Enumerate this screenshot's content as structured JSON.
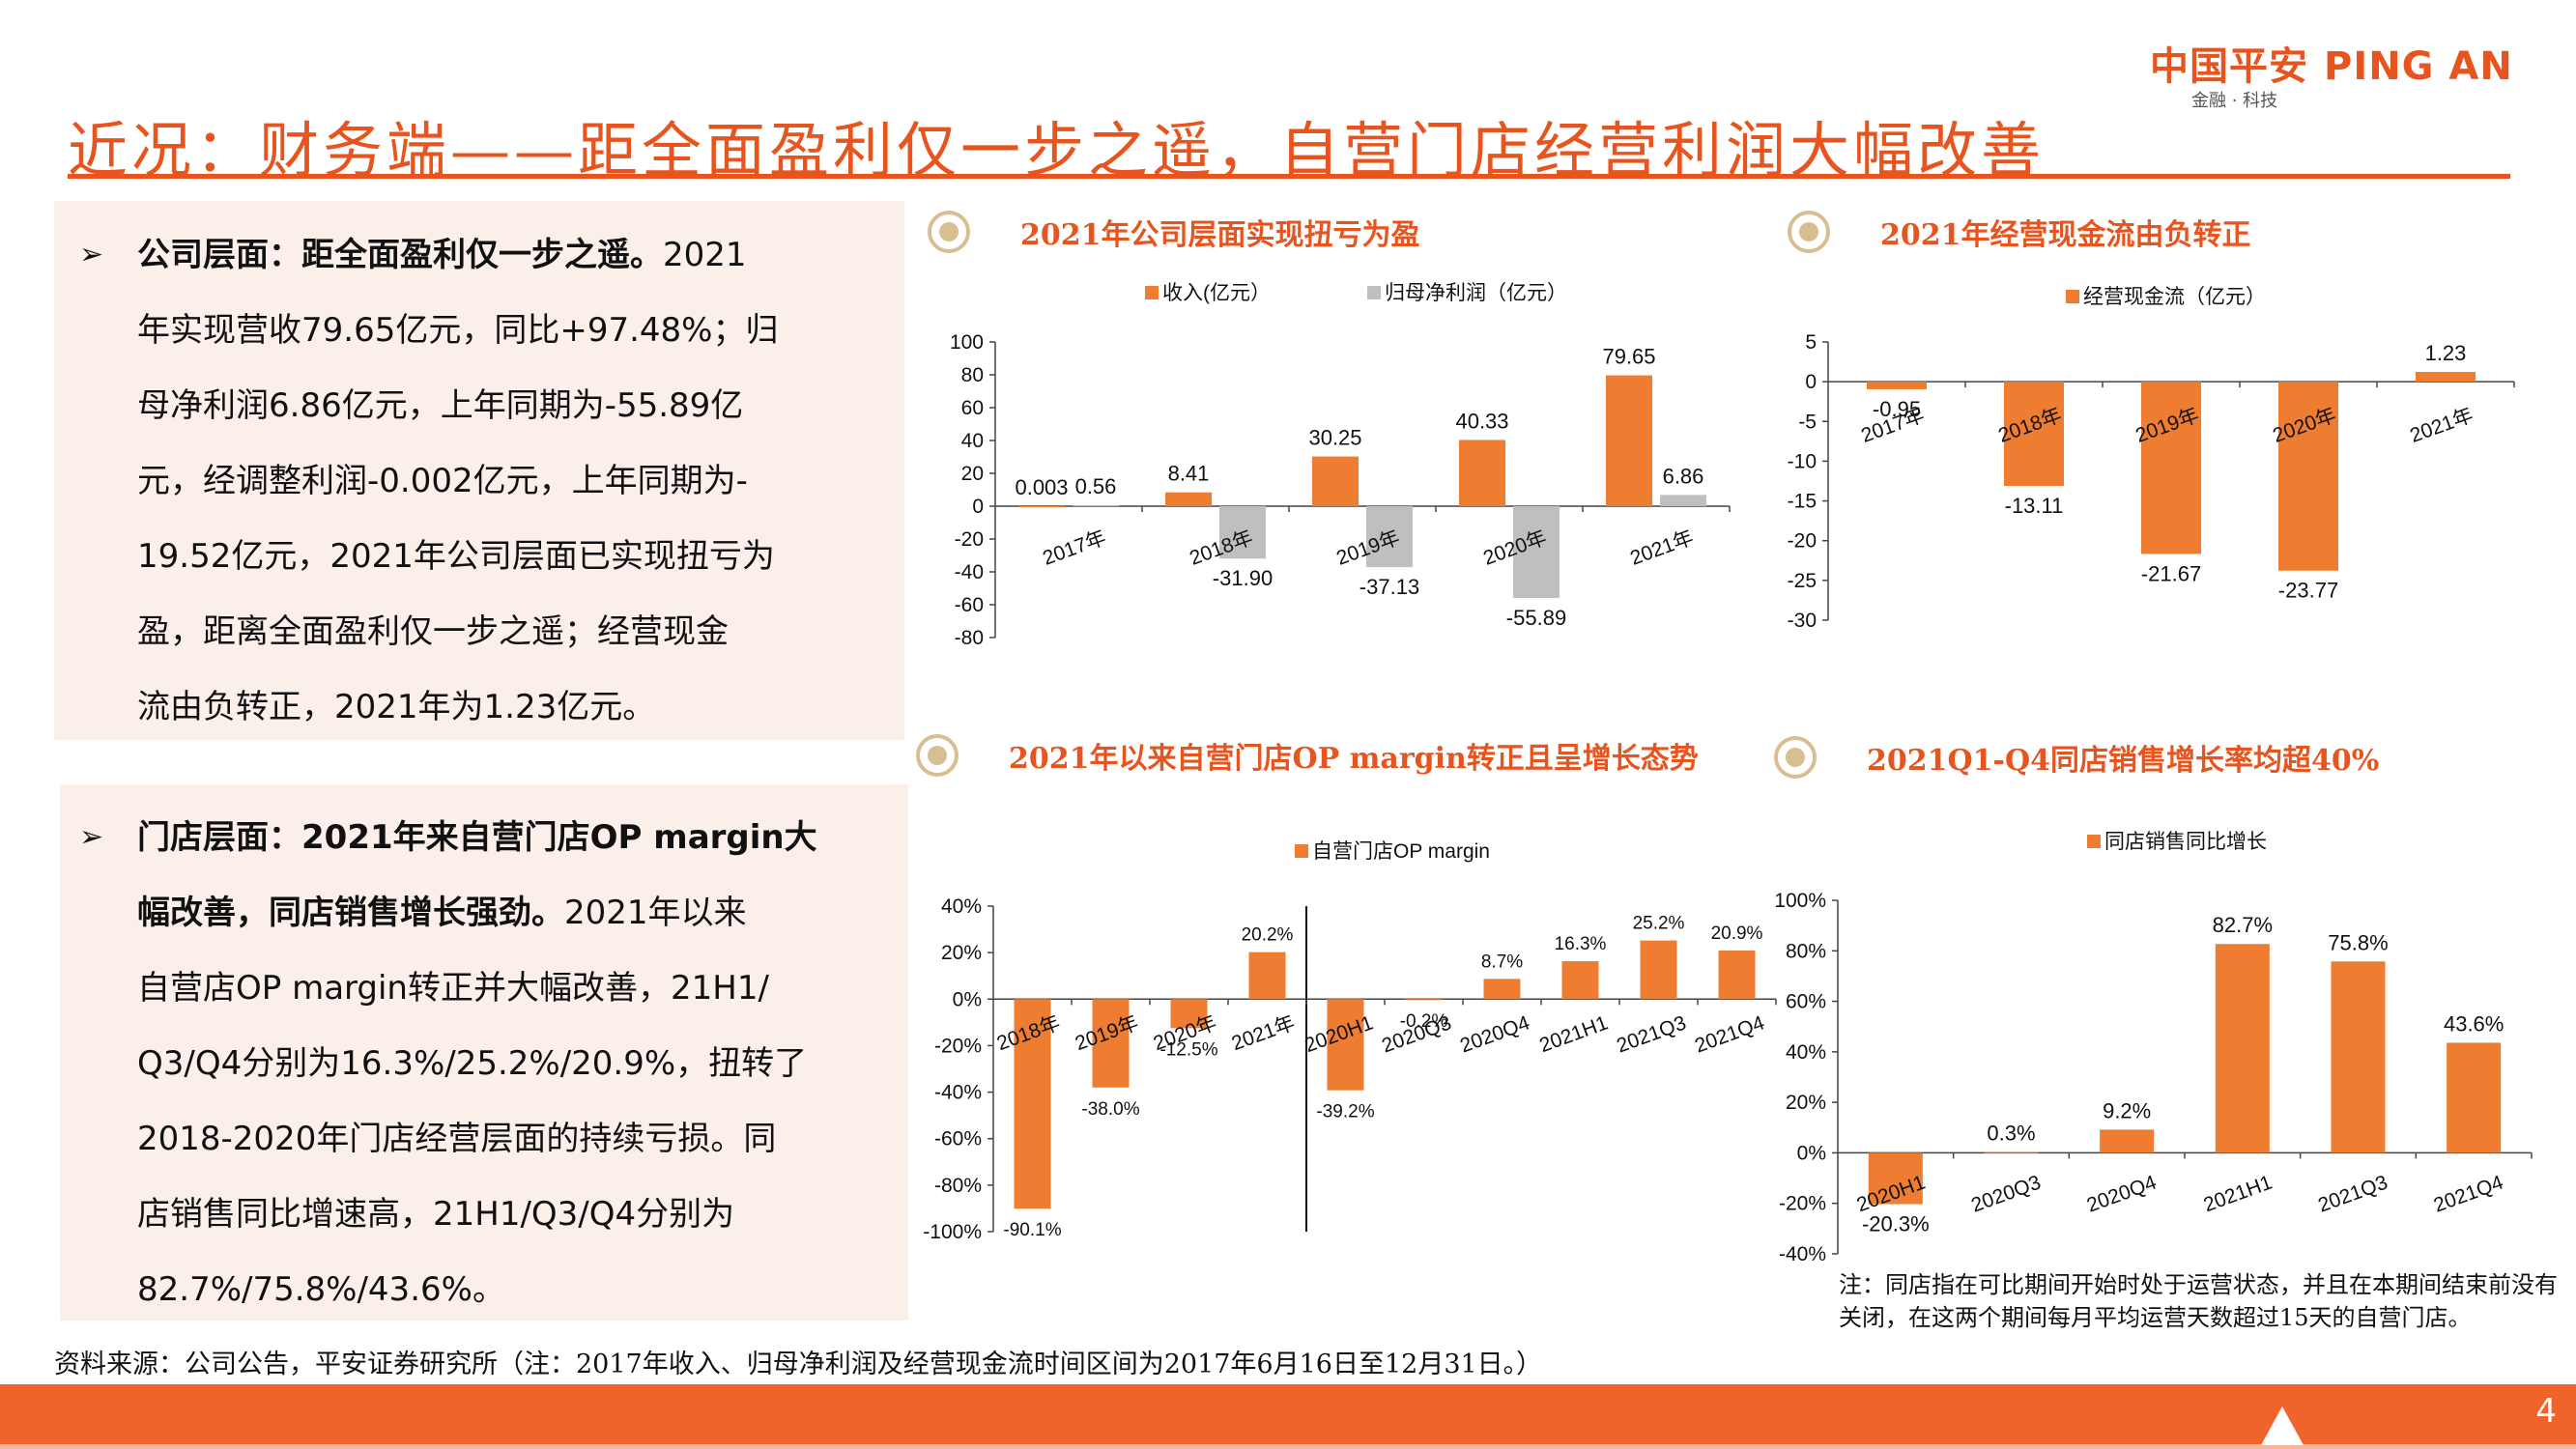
{
  "header": {
    "logo_cn": "中国平安",
    "logo_en": "PING AN",
    "logo_sub": "金融 · 科技",
    "title": "近况：财务端——距全面盈利仅一步之遥，自营门店经营利润大幅改善"
  },
  "panels": [
    {
      "bullet": "➢",
      "heading": "公司层面：距全面盈利仅一步之遥。",
      "lines": [
        "2021",
        "年实现营收79.65亿元，同比+97.48%；归",
        "母净利润6.86亿元，上年同期为-55.89亿",
        "元，经调整利润-0.002亿元，上年同期为-",
        "19.52亿元，2021年公司层面已实现扭亏为",
        "盈，距离全面盈利仅一步之遥；经营现金",
        "流由负转正，2021年为1.23亿元。"
      ]
    },
    {
      "bullet": "➢",
      "heading_lines": [
        "门店层面：2021年来自营门店OP margin大",
        "幅改善，同店销售增长强劲。"
      ],
      "lines": [
        "2021年以来",
        "自营店OP margin转正并大幅改善，21H1/",
        "Q3/Q4分别为16.3%/25.2%/20.9%，扭转了",
        "2018-2020年门店经营层面的持续亏损。同",
        "店销售同比增速高，21H1/Q3/Q4分别为",
        "82.7%/75.8%/43.6%。"
      ]
    }
  ],
  "colors": {
    "orange": "#ee7d31",
    "gray": "#bfbfbf",
    "accent": "#e8541e",
    "target": "#d8bf92"
  },
  "chart_data": [
    {
      "type": "bar",
      "title": "2021年公司层面实现扭亏为盈",
      "categories": [
        "2017年",
        "2018年",
        "2019年",
        "2020年",
        "2021年"
      ],
      "series": [
        {
          "name": "收入(亿元）",
          "values": [
            0.003,
            8.41,
            30.25,
            40.33,
            79.65
          ],
          "labels": [
            "0.003",
            "8.41",
            "30.25",
            "40.33",
            "79.65"
          ]
        },
        {
          "name": "归母净利润（亿元）",
          "values": [
            0.56,
            -31.9,
            -37.13,
            -55.89,
            6.86
          ],
          "labels": [
            "0.56",
            "-31.90",
            "-37.13",
            "-55.89",
            "6.86"
          ]
        }
      ],
      "yticks": [
        "100",
        "80",
        "60",
        "40",
        "20",
        "0",
        "-20",
        "-40",
        "-60",
        "-80"
      ],
      "ylim": [
        -80,
        100
      ],
      "legend": "top"
    },
    {
      "type": "bar",
      "title": "2021年经营现金流由负转正",
      "categories": [
        "2017年",
        "2018年",
        "2019年",
        "2020年",
        "2021年"
      ],
      "series": [
        {
          "name": "经营现金流（亿元）",
          "values": [
            -0.95,
            -13.11,
            -21.67,
            -23.77,
            1.23
          ],
          "labels": [
            "-0.95",
            "-13.11",
            "-21.67",
            "-23.77",
            "1.23"
          ]
        }
      ],
      "yticks": [
        "5",
        "0",
        "-5",
        "-10",
        "-15",
        "-20",
        "-25",
        "-30"
      ],
      "ylim": [
        -30,
        5
      ],
      "legend": "top"
    },
    {
      "type": "bar",
      "title": "2021年以来自营门店OP margin转正且呈增长态势",
      "categories": [
        "2018年",
        "2019年",
        "2020年",
        "2021年",
        "2020H1",
        "2020Q3",
        "2020Q4",
        "2021H1",
        "2021Q3",
        "2021Q4"
      ],
      "series": [
        {
          "name": "自营门店OP margin",
          "values": [
            -90.1,
            -38.0,
            -12.5,
            20.2,
            -39.2,
            -0.2,
            8.7,
            16.3,
            25.2,
            20.9
          ],
          "labels": [
            "-90.1%",
            "-38.0%",
            "-12.5%",
            "20.2%",
            "-39.2%",
            "-0.2%",
            "8.7%",
            "16.3%",
            "25.2%",
            "20.9%"
          ]
        }
      ],
      "yticks": [
        "40%",
        "20%",
        "0%",
        "-20%",
        "-40%",
        "-60%",
        "-80%",
        "-100%"
      ],
      "ylim": [
        -100,
        40
      ],
      "legend": "top"
    },
    {
      "type": "bar",
      "title": "2021Q1-Q4同店销售增长率均超40%",
      "categories": [
        "2020H1",
        "2020Q3",
        "2020Q4",
        "2021H1",
        "2021Q3",
        "2021Q4"
      ],
      "series": [
        {
          "name": "同店销售同比增长",
          "values": [
            -20.3,
            0.3,
            9.2,
            82.7,
            75.8,
            43.6
          ],
          "labels": [
            "-20.3%",
            "0.3%",
            "9.2%",
            "82.7%",
            "75.8%",
            "43.6%"
          ]
        }
      ],
      "yticks": [
        "100%",
        "80%",
        "60%",
        "40%",
        "20%",
        "0%",
        "-20%",
        "-40%"
      ],
      "ylim": [
        -40,
        100
      ],
      "legend": "top"
    }
  ],
  "note": "注：同店指在可比期间开始时处于运营状态，并且在本期间结束前没有关闭，在这两个期间每月平均运营天数超过15天的自营门店。",
  "source": "资料来源：公司公告，平安证券研究所（注：2017年收入、归母净利润及经营现金流时间区间为2017年6月16日至12月31日。）",
  "page_number": "4"
}
